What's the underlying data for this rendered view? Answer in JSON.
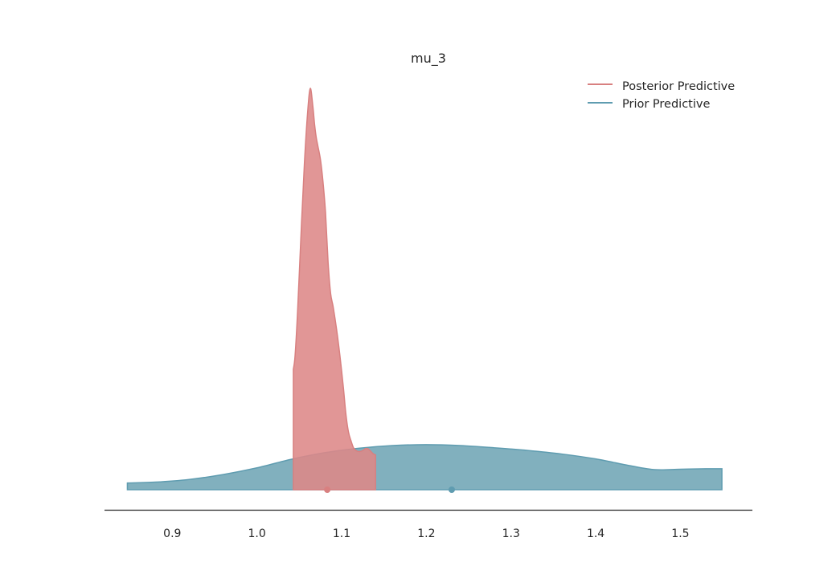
{
  "chart_data": {
    "type": "area",
    "title": "mu_3",
    "xlabel": "",
    "ylabel": "",
    "xlim": [
      0.82,
      1.585
    ],
    "ylim": [
      0,
      0.9
    ],
    "x_ticks": [
      0.9,
      1.0,
      1.1,
      1.2,
      1.3,
      1.4,
      1.5
    ],
    "x_tick_labels": [
      "0.9",
      "1.0",
      "1.1",
      "1.2",
      "1.3",
      "1.4",
      "1.5"
    ],
    "grid": false,
    "legend_position": "top-right",
    "series": [
      {
        "name": "Posterior Predictive",
        "color": "#dd8787",
        "edge_color": "#d88080",
        "marker_x": 1.083,
        "x": [
          1.043,
          1.045,
          1.048,
          1.052,
          1.056,
          1.06,
          1.063,
          1.066,
          1.068,
          1.07,
          1.072,
          1.075,
          1.078,
          1.081,
          1.084,
          1.087,
          1.09,
          1.094,
          1.098,
          1.102,
          1.105,
          1.108,
          1.111,
          1.114,
          1.117,
          1.119,
          1.122,
          1.125,
          1.128,
          1.131,
          1.134,
          1.137,
          1.14
        ],
        "y": [
          0.27,
          0.3,
          0.4,
          0.57,
          0.73,
          0.85,
          0.9,
          0.86,
          0.82,
          0.79,
          0.77,
          0.74,
          0.69,
          0.62,
          0.51,
          0.44,
          0.41,
          0.36,
          0.3,
          0.23,
          0.17,
          0.13,
          0.11,
          0.094,
          0.088,
          0.086,
          0.086,
          0.088,
          0.092,
          0.092,
          0.087,
          0.081,
          0.078
        ]
      },
      {
        "name": "Prior Predictive",
        "color": "#6fa5b5",
        "edge_color": "#5f9cb0",
        "marker_x": 1.23,
        "x": [
          0.847,
          0.88,
          0.92,
          0.96,
          1.0,
          1.04,
          1.08,
          1.12,
          1.16,
          1.2,
          1.24,
          1.28,
          1.32,
          1.36,
          1.4,
          1.44,
          1.47,
          1.5,
          1.53,
          1.549
        ],
        "y": [
          0.015,
          0.017,
          0.023,
          0.034,
          0.049,
          0.068,
          0.083,
          0.093,
          0.099,
          0.101,
          0.099,
          0.094,
          0.088,
          0.08,
          0.069,
          0.054,
          0.045,
          0.046,
          0.047,
          0.047
        ]
      }
    ]
  }
}
